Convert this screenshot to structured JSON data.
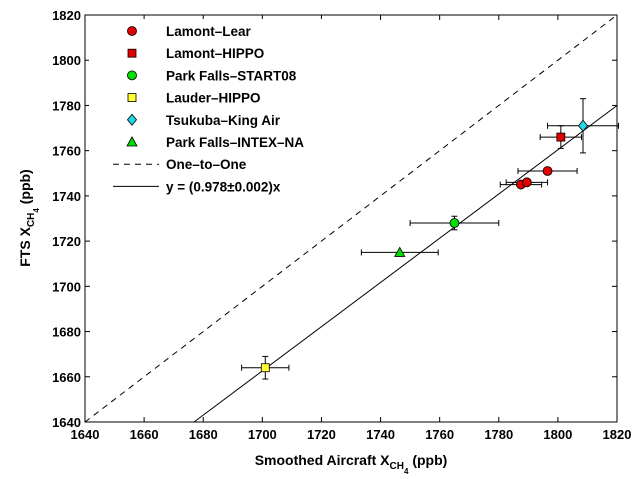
{
  "chart_data": {
    "type": "scatter",
    "xlabel": "Smoothed Aircraft X",
    "xlabel_sub": "CH",
    "xlabel_subsub": "4",
    "xlabel_unit": " (ppb)",
    "ylabel": "FTS X",
    "ylabel_sub": "CH",
    "ylabel_subsub": "4",
    "ylabel_unit": " (ppb)",
    "xlim": [
      1640,
      1820
    ],
    "ylim": [
      1640,
      1820
    ],
    "xticks": [
      1640,
      1660,
      1680,
      1700,
      1720,
      1740,
      1760,
      1780,
      1800,
      1820
    ],
    "yticks": [
      1640,
      1660,
      1680,
      1700,
      1720,
      1740,
      1760,
      1780,
      1800,
      1820
    ],
    "grid": false,
    "legend_position": "top-left",
    "series": [
      {
        "name": "Lamont–Lear",
        "marker": "circle",
        "color": "#e00000",
        "points": [
          {
            "x": 1787.5,
            "y": 1745,
            "xerr": 7,
            "yerr": 0
          },
          {
            "x": 1789.5,
            "y": 1746,
            "xerr": 7,
            "yerr": 0
          },
          {
            "x": 1796.5,
            "y": 1751,
            "xerr": 10,
            "yerr": 0
          }
        ]
      },
      {
        "name": "Lamont–HIPPO",
        "marker": "square",
        "color": "#e00000",
        "points": [
          {
            "x": 1801,
            "y": 1766,
            "xerr": 7,
            "yerr": 5
          }
        ]
      },
      {
        "name": "Park Falls–START08",
        "marker": "circle",
        "color": "#00dd00",
        "points": [
          {
            "x": 1765,
            "y": 1728,
            "xerr": 15,
            "yerr": 3
          }
        ]
      },
      {
        "name": "Lauder–HIPPO",
        "marker": "square",
        "color": "#ffff33",
        "points": [
          {
            "x": 1701,
            "y": 1664,
            "xerr": 8,
            "yerr": 5
          }
        ]
      },
      {
        "name": "Tsukuba–King Air",
        "marker": "diamond",
        "color": "#22d8e8",
        "points": [
          {
            "x": 1808.5,
            "y": 1771,
            "xerr": 12,
            "yerr": 12
          }
        ]
      },
      {
        "name": "Park Falls–INTEX–NA",
        "marker": "triangle",
        "color": "#00dd00",
        "points": [
          {
            "x": 1746.5,
            "y": 1715,
            "xerr": 13,
            "yerr": 0
          }
        ]
      }
    ],
    "lines": [
      {
        "name": "One–to–One",
        "style": "dashed",
        "slope": 1.0
      },
      {
        "name": "y = (0.978±0.002)x",
        "style": "solid",
        "slope": 0.978
      }
    ]
  }
}
